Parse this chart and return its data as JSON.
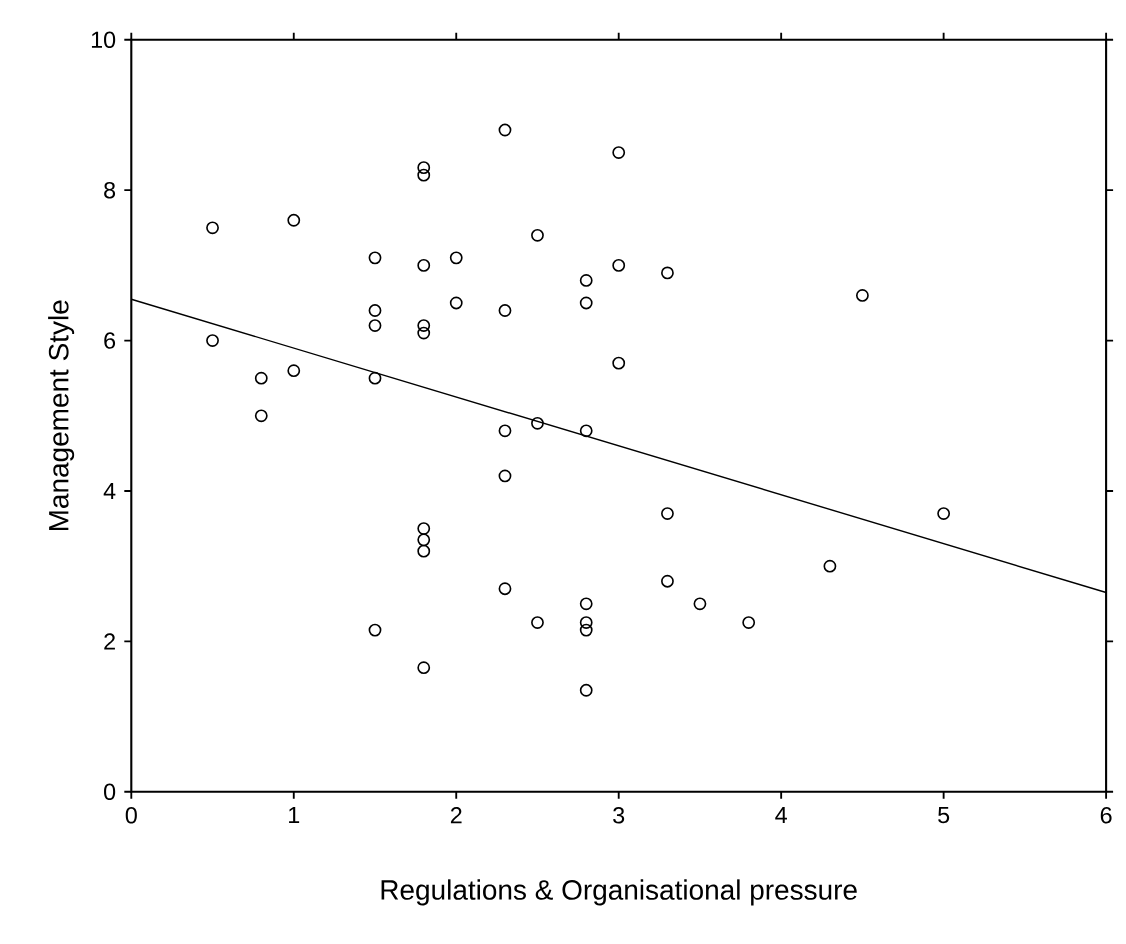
{
  "chart_data": {
    "type": "scatter",
    "xlabel": "Regulations & Organisational pressure",
    "ylabel": "Management Style",
    "xlim": [
      0,
      6
    ],
    "ylim": [
      0,
      10
    ],
    "xticks": [
      0,
      1,
      2,
      3,
      4,
      5,
      6
    ],
    "yticks": [
      0,
      2,
      4,
      6,
      8,
      10
    ],
    "grid": false,
    "series": [
      {
        "color": "#000000",
        "marker": "circle",
        "x": [
          0.5,
          0.5,
          0.8,
          0.8,
          1.0,
          1.0,
          1.5,
          1.5,
          1.5,
          1.5,
          1.5,
          1.8,
          1.8,
          1.8,
          1.8,
          1.8,
          1.8,
          1.8,
          1.8,
          1.8,
          2.0,
          2.0,
          2.3,
          2.3,
          2.3,
          2.3,
          2.3,
          2.5,
          2.5,
          2.5,
          2.8,
          2.8,
          2.8,
          2.8,
          2.8,
          2.8,
          2.8,
          3.0,
          3.0,
          3.0,
          3.3,
          3.3,
          3.3,
          3.5,
          3.8,
          4.3,
          4.5,
          5.0
        ],
        "values": [
          7.5,
          6.0,
          5.5,
          5.0,
          7.6,
          5.6,
          7.1,
          6.4,
          6.2,
          5.5,
          2.15,
          8.3,
          8.2,
          7.0,
          6.2,
          6.1,
          3.5,
          3.35,
          3.2,
          1.65,
          7.1,
          6.5,
          8.8,
          6.4,
          4.8,
          4.2,
          2.7,
          7.4,
          4.9,
          2.25,
          6.8,
          6.5,
          4.8,
          2.5,
          2.25,
          2.15,
          1.35,
          8.5,
          7.0,
          5.7,
          6.9,
          3.7,
          2.8,
          2.5,
          2.25,
          3.0,
          6.6,
          3.7
        ]
      },
      {
        "type": "line",
        "color": "#000000",
        "marker": "none",
        "line_style": "solid",
        "x": [
          0,
          6
        ],
        "values": [
          6.55,
          2.65
        ]
      }
    ]
  }
}
